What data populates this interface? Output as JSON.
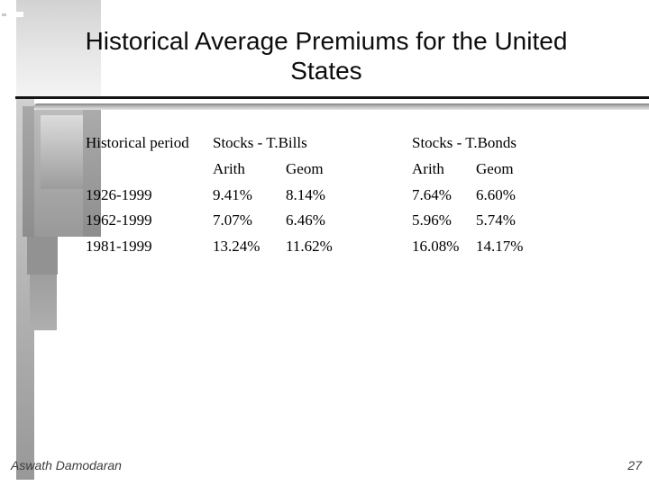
{
  "slide": {
    "title": {
      "line1": "Historical Average Premiums for the United",
      "line2": "States"
    },
    "table": {
      "period_header": "Historical period",
      "groups": [
        {
          "label": "Stocks - T.Bills",
          "sub": [
            "Arith",
            "Geom"
          ]
        },
        {
          "label": "Stocks - T.Bonds",
          "sub": [
            "Arith",
            "Geom"
          ]
        }
      ],
      "rows": [
        {
          "period": "1926-1999",
          "bills_arith": "9.41%",
          "bills_geom": "8.14%",
          "bonds_arith": "7.64%",
          "bonds_geom": "6.60%"
        },
        {
          "period": "1962-1999",
          "bills_arith": "7.07%",
          "bills_geom": "6.46%",
          "bonds_arith": "5.96%",
          "bonds_geom": "5.74%"
        },
        {
          "period": "1981-1999",
          "bills_arith": "13.24%",
          "bills_geom": "11.62%",
          "bonds_arith": "16.08%",
          "bonds_geom": "14.17%"
        }
      ]
    },
    "footer": {
      "author": "Aswath Damodaran",
      "page_number": "27"
    },
    "colors": {
      "background": "#ffffff",
      "text": "#000000",
      "rule_line": "#141414",
      "decoration_gray": "#a0a0a0",
      "footer_text": "#3d3d3d"
    }
  }
}
